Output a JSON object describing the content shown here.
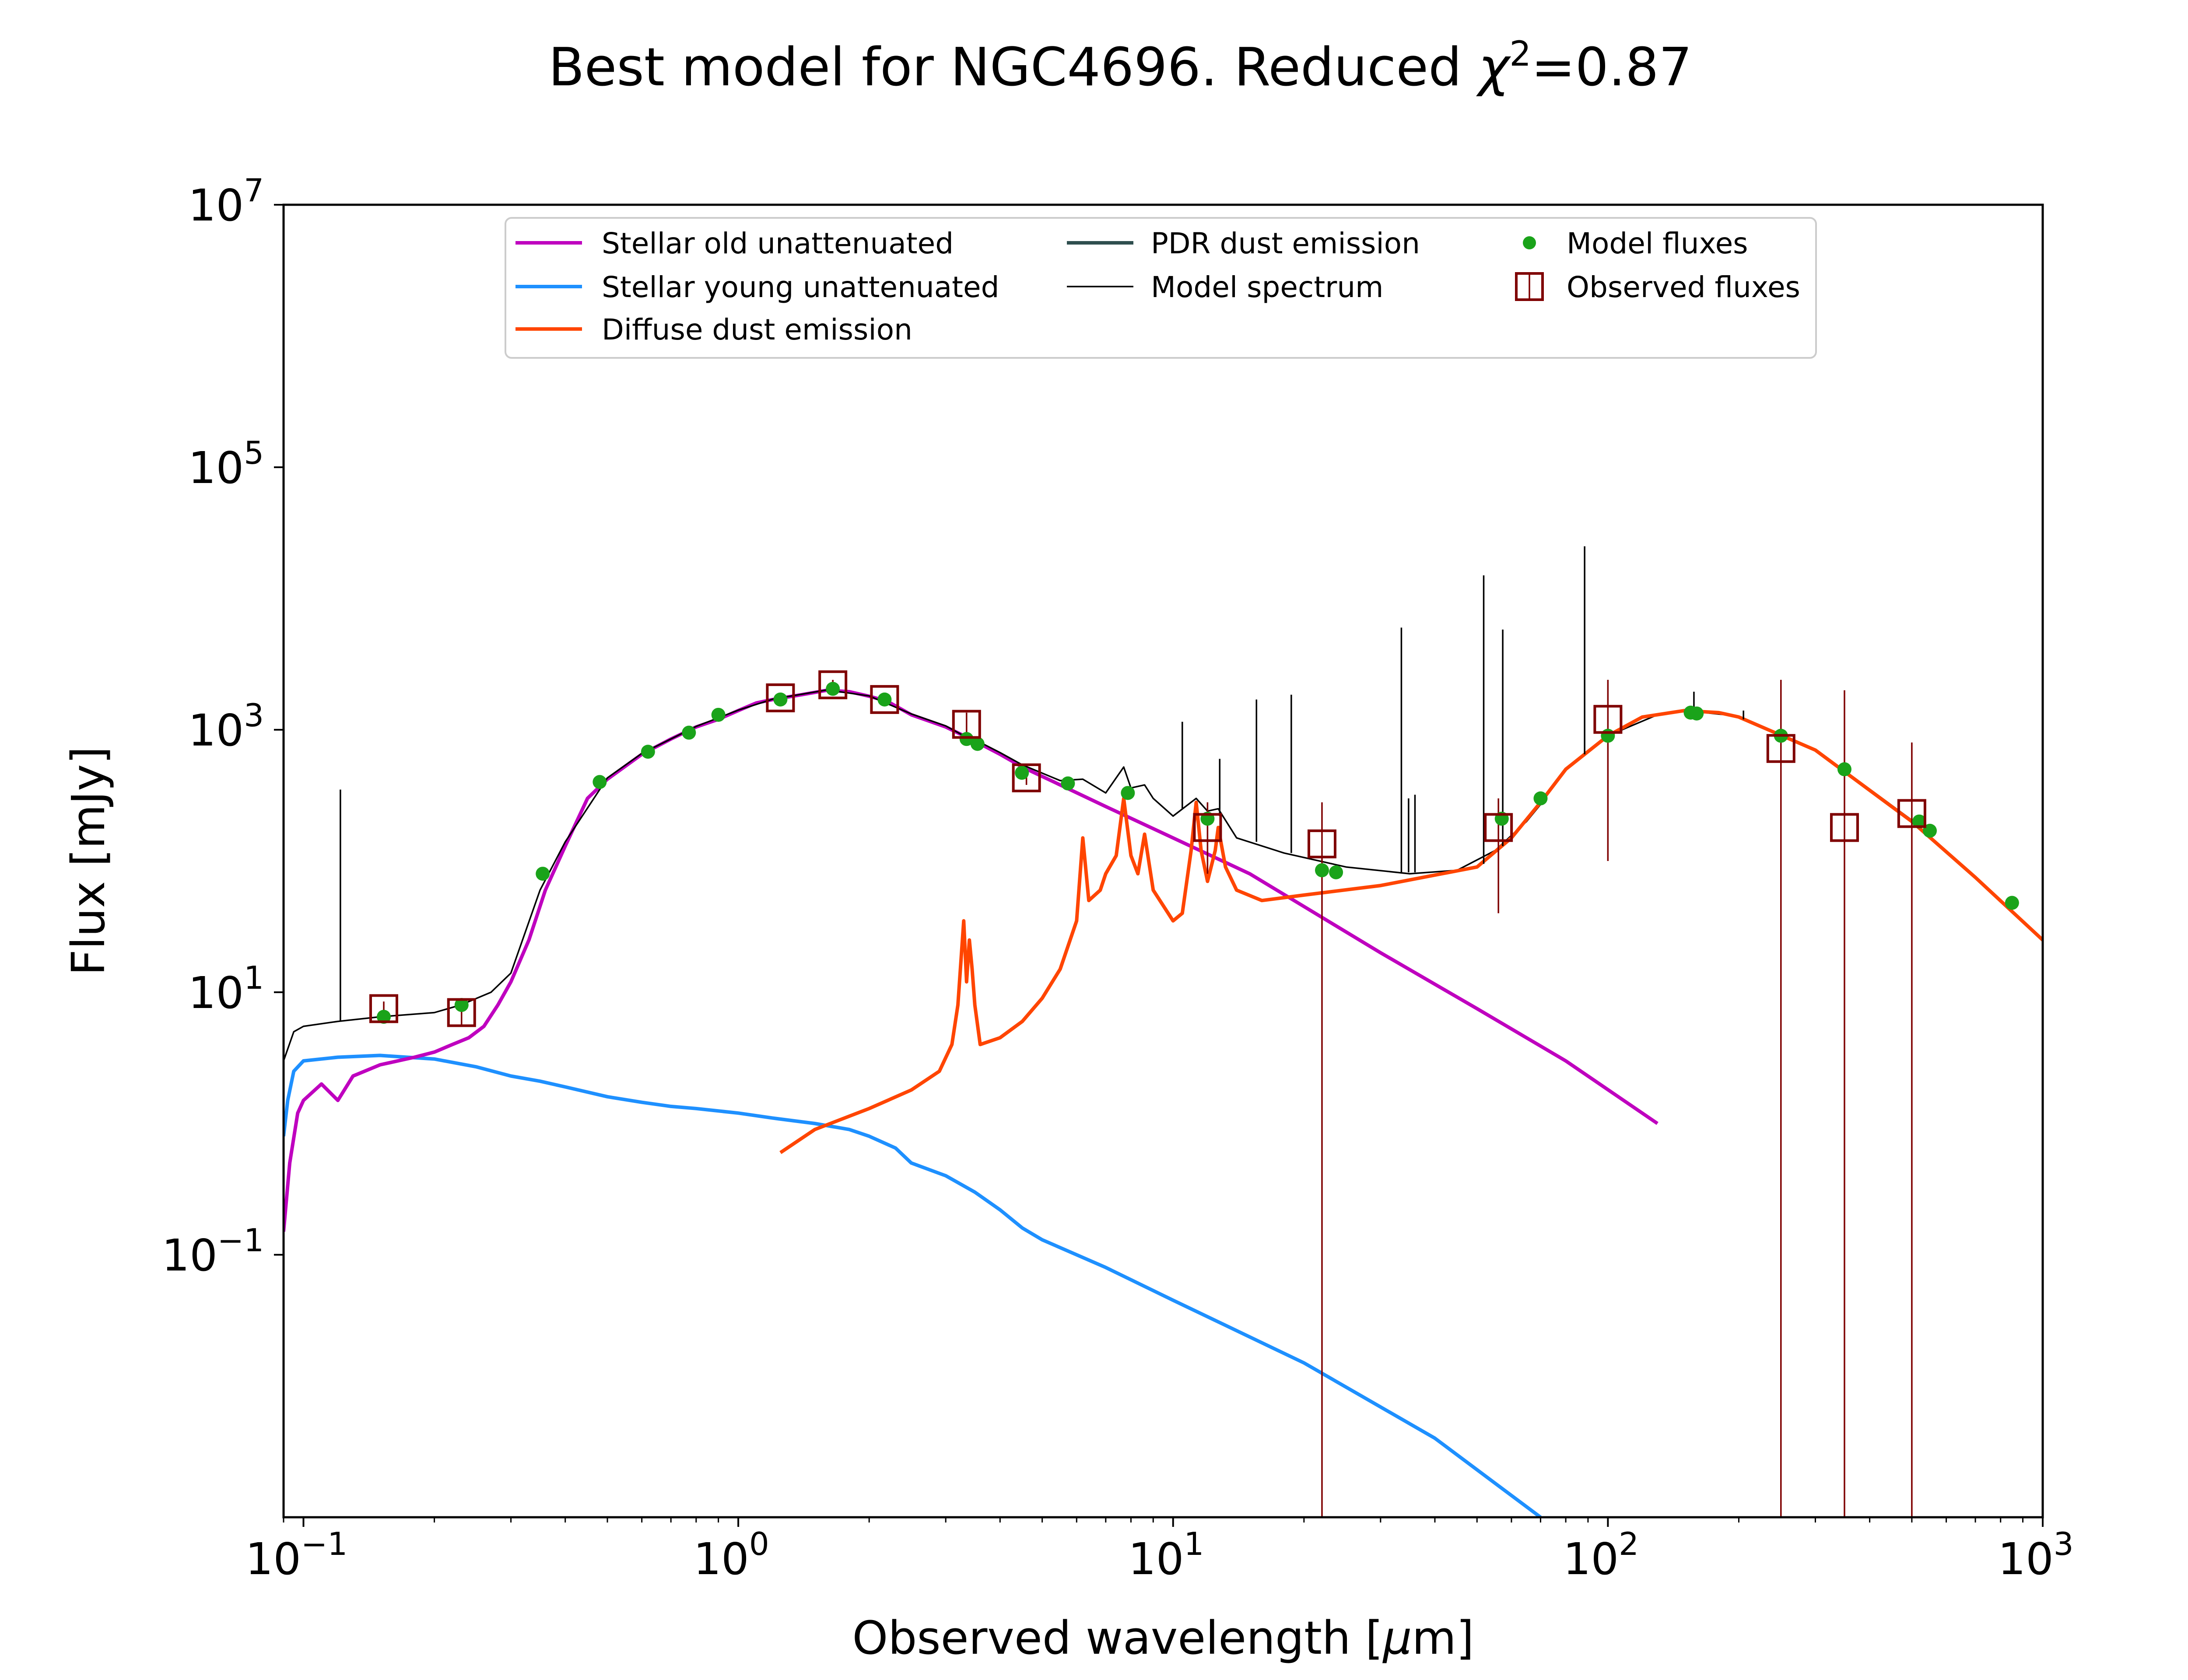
{
  "chart_data": {
    "type": "line",
    "title": {
      "prefix": "Best model for NGC4696. Reduced ",
      "chi": "χ",
      "sup": "2",
      "suffix": "=0.87"
    },
    "xlabel": {
      "prefix": "Observed wavelength [",
      "mu": "μ",
      "suffix": "m]"
    },
    "ylabel": "Flux [mJy]",
    "xscale": "log",
    "yscale": "log",
    "xlim": [
      0.09,
      1000
    ],
    "ylim": [
      0.001,
      10000000
    ],
    "x_ticks": [
      {
        "value": 0.1,
        "base": "10",
        "exp": "−1"
      },
      {
        "value": 1,
        "base": "10",
        "exp": "0"
      },
      {
        "value": 10,
        "base": "10",
        "exp": "1"
      },
      {
        "value": 100,
        "base": "10",
        "exp": "2"
      },
      {
        "value": 1000,
        "base": "10",
        "exp": "3"
      }
    ],
    "y_ticks": [
      {
        "value": 0.1,
        "base": "10",
        "exp": "−1"
      },
      {
        "value": 10,
        "base": "10",
        "exp": "1"
      },
      {
        "value": 1000,
        "base": "10",
        "exp": "3"
      },
      {
        "value": 100000,
        "base": "10",
        "exp": "5"
      },
      {
        "value": 10000000,
        "base": "10",
        "exp": "7"
      }
    ],
    "legend_position": "top-center",
    "legend": [
      {
        "key": "old",
        "label": "Stellar old unattenuated",
        "kind": "line",
        "color": "#bf00bf"
      },
      {
        "key": "young",
        "label": "Stellar young unattenuated",
        "kind": "line",
        "color": "#1e90ff"
      },
      {
        "key": "diffuse",
        "label": "Diffuse dust emission",
        "kind": "line",
        "color": "#ff4500"
      },
      {
        "key": "pdr",
        "label": "PDR dust emission",
        "kind": "line",
        "color": "#2f4f4f"
      },
      {
        "key": "model",
        "label": "Model spectrum",
        "kind": "thinline",
        "color": "#000000"
      },
      {
        "key": "modelflux",
        "label": "Model fluxes",
        "kind": "dot",
        "color": "#1aa31a"
      },
      {
        "key": "obsflux",
        "label": "Observed fluxes",
        "kind": "square",
        "color": "#7f0000"
      }
    ],
    "series": [
      {
        "name": "Stellar old unattenuated",
        "color": "#bf00bf",
        "points": [
          [
            0.09,
            0.15
          ],
          [
            0.093,
            0.5
          ],
          [
            0.097,
            1.2
          ],
          [
            0.1,
            1.5
          ],
          [
            0.11,
            2
          ],
          [
            0.12,
            1.5
          ],
          [
            0.13,
            2.3
          ],
          [
            0.15,
            2.8
          ],
          [
            0.18,
            3.2
          ],
          [
            0.2,
            3.5
          ],
          [
            0.22,
            4
          ],
          [
            0.24,
            4.5
          ],
          [
            0.26,
            5.5
          ],
          [
            0.28,
            8
          ],
          [
            0.3,
            12
          ],
          [
            0.33,
            25
          ],
          [
            0.36,
            60
          ],
          [
            0.4,
            130
          ],
          [
            0.45,
            300
          ],
          [
            0.5,
            420
          ],
          [
            0.6,
            650
          ],
          [
            0.7,
            850
          ],
          [
            0.8,
            1050
          ],
          [
            0.9,
            1200
          ],
          [
            1.0,
            1400
          ],
          [
            1.1,
            1600
          ],
          [
            1.2,
            1700
          ],
          [
            1.4,
            1850
          ],
          [
            1.6,
            2000
          ],
          [
            1.8,
            1950
          ],
          [
            2.0,
            1800
          ],
          [
            2.2,
            1650
          ],
          [
            2.5,
            1300
          ],
          [
            3.0,
            1050
          ],
          [
            3.5,
            820
          ],
          [
            4.0,
            650
          ],
          [
            4.5,
            520
          ],
          [
            5.5,
            380
          ],
          [
            7,
            260
          ],
          [
            10,
            150
          ],
          [
            15,
            80
          ],
          [
            20,
            45
          ],
          [
            30,
            20
          ],
          [
            50,
            7.5
          ],
          [
            80,
            3
          ],
          [
            130,
            1.0
          ]
        ]
      },
      {
        "name": "Stellar young unattenuated",
        "color": "#1e90ff",
        "points": [
          [
            0.09,
            0.8
          ],
          [
            0.092,
            1.5
          ],
          [
            0.095,
            2.5
          ],
          [
            0.1,
            3.0
          ],
          [
            0.12,
            3.2
          ],
          [
            0.15,
            3.3
          ],
          [
            0.2,
            3.1
          ],
          [
            0.25,
            2.7
          ],
          [
            0.3,
            2.3
          ],
          [
            0.35,
            2.1
          ],
          [
            0.4,
            1.9
          ],
          [
            0.5,
            1.6
          ],
          [
            0.6,
            1.45
          ],
          [
            0.7,
            1.35
          ],
          [
            0.8,
            1.3
          ],
          [
            1.0,
            1.2
          ],
          [
            1.2,
            1.1
          ],
          [
            1.5,
            1.0
          ],
          [
            1.8,
            0.9
          ],
          [
            2.0,
            0.8
          ],
          [
            2.3,
            0.65
          ],
          [
            2.5,
            0.5
          ],
          [
            3.0,
            0.4
          ],
          [
            3.5,
            0.3
          ],
          [
            4.0,
            0.22
          ],
          [
            4.5,
            0.16
          ],
          [
            5.0,
            0.13
          ],
          [
            7.0,
            0.08
          ],
          [
            10,
            0.045
          ],
          [
            20,
            0.015
          ],
          [
            40,
            0.004
          ],
          [
            70,
            0.001
          ]
        ]
      },
      {
        "name": "Diffuse dust emission",
        "color": "#ff4500",
        "points": [
          [
            1.25,
            0.6
          ],
          [
            1.5,
            0.9
          ],
          [
            2.0,
            1.3
          ],
          [
            2.5,
            1.8
          ],
          [
            2.9,
            2.5
          ],
          [
            3.1,
            4
          ],
          [
            3.2,
            8
          ],
          [
            3.3,
            35
          ],
          [
            3.35,
            12
          ],
          [
            3.4,
            25
          ],
          [
            3.45,
            15
          ],
          [
            3.5,
            8
          ],
          [
            3.6,
            4
          ],
          [
            4.0,
            4.5
          ],
          [
            4.5,
            6
          ],
          [
            5.0,
            9
          ],
          [
            5.5,
            15
          ],
          [
            6.0,
            35
          ],
          [
            6.2,
            150
          ],
          [
            6.4,
            50
          ],
          [
            6.8,
            60
          ],
          [
            7.0,
            80
          ],
          [
            7.4,
            110
          ],
          [
            7.7,
            300
          ],
          [
            8.0,
            110
          ],
          [
            8.3,
            80
          ],
          [
            8.6,
            160
          ],
          [
            9.0,
            60
          ],
          [
            10,
            35
          ],
          [
            10.5,
            40
          ],
          [
            11.0,
            120
          ],
          [
            11.3,
            280
          ],
          [
            11.6,
            120
          ],
          [
            12.0,
            70
          ],
          [
            12.5,
            120
          ],
          [
            12.7,
            180
          ],
          [
            13.2,
            90
          ],
          [
            14,
            60
          ],
          [
            16,
            50
          ],
          [
            20,
            55
          ],
          [
            30,
            65
          ],
          [
            50,
            90
          ],
          [
            60,
            150
          ],
          [
            70,
            280
          ],
          [
            80,
            500
          ],
          [
            100,
            900
          ],
          [
            120,
            1250
          ],
          [
            150,
            1400
          ],
          [
            180,
            1350
          ],
          [
            200,
            1250
          ],
          [
            300,
            700
          ],
          [
            500,
            200
          ],
          [
            700,
            75
          ],
          [
            1000,
            25
          ]
        ]
      },
      {
        "name": "Model spectrum",
        "color": "#000000",
        "points": [
          [
            0.09,
            3
          ],
          [
            0.095,
            5
          ],
          [
            0.1,
            5.5
          ],
          [
            0.12,
            6
          ],
          [
            0.15,
            6.5
          ],
          [
            0.2,
            7
          ],
          [
            0.23,
            8
          ],
          [
            0.27,
            10
          ],
          [
            0.3,
            14
          ],
          [
            0.35,
            60
          ],
          [
            0.4,
            140
          ],
          [
            0.5,
            430
          ],
          [
            0.6,
            660
          ],
          [
            0.8,
            1060
          ],
          [
            1.0,
            1410
          ],
          [
            1.2,
            1710
          ],
          [
            1.6,
            2010
          ],
          [
            2.0,
            1810
          ],
          [
            2.5,
            1320
          ],
          [
            3.0,
            1070
          ],
          [
            3.3,
            900
          ],
          [
            3.5,
            840
          ],
          [
            4.0,
            670
          ],
          [
            4.5,
            540
          ],
          [
            5.5,
            410
          ],
          [
            6.2,
            420
          ],
          [
            7.0,
            330
          ],
          [
            7.7,
            520
          ],
          [
            8.0,
            360
          ],
          [
            8.6,
            380
          ],
          [
            9.0,
            300
          ],
          [
            10,
            220
          ],
          [
            11.3,
            300
          ],
          [
            12,
            240
          ],
          [
            12.7,
            250
          ],
          [
            14,
            150
          ],
          [
            18,
            115
          ],
          [
            25,
            90
          ],
          [
            35,
            80
          ],
          [
            45,
            85
          ],
          [
            55,
            120
          ],
          [
            65,
            200
          ],
          [
            70,
            270
          ],
          [
            80,
            500
          ],
          [
            100,
            900
          ],
          [
            130,
            1300
          ],
          [
            150,
            1400
          ],
          [
            200,
            1270
          ],
          [
            300,
            710
          ],
          [
            500,
            205
          ],
          [
            700,
            76
          ],
          [
            1000,
            25
          ]
        ]
      }
    ],
    "emission_lines": [
      {
        "x": 0.1216,
        "base": 6,
        "peak": 350
      },
      {
        "x": 10.5,
        "base": 250,
        "peak": 1150
      },
      {
        "x": 12.8,
        "base": 220,
        "peak": 600
      },
      {
        "x": 15.55,
        "base": 140,
        "peak": 1700
      },
      {
        "x": 18.7,
        "base": 115,
        "peak": 1850
      },
      {
        "x": 33.5,
        "base": 82,
        "peak": 6000
      },
      {
        "x": 34.8,
        "base": 82,
        "peak": 300
      },
      {
        "x": 36.0,
        "base": 82,
        "peak": 320
      },
      {
        "x": 51.8,
        "base": 95,
        "peak": 15000
      },
      {
        "x": 57.3,
        "base": 130,
        "peak": 5800
      },
      {
        "x": 88.4,
        "base": 650,
        "peak": 25000
      },
      {
        "x": 157.7,
        "base": 1400,
        "peak": 1950
      },
      {
        "x": 205,
        "base": 1200,
        "peak": 1400
      }
    ],
    "model_fluxes": [
      [
        0.153,
        6.5
      ],
      [
        0.231,
        8
      ],
      [
        0.355,
        80
      ],
      [
        0.48,
        400
      ],
      [
        0.62,
        680
      ],
      [
        0.77,
        950
      ],
      [
        0.9,
        1300
      ],
      [
        1.25,
        1700
      ],
      [
        1.65,
        2050
      ],
      [
        2.17,
        1700
      ],
      [
        3.35,
        850
      ],
      [
        3.55,
        780
      ],
      [
        4.49,
        470
      ],
      [
        5.73,
        390
      ],
      [
        7.87,
        330
      ],
      [
        12.0,
        210
      ],
      [
        22.0,
        85
      ],
      [
        23.7,
        82
      ],
      [
        57.0,
        210
      ],
      [
        70.0,
        300
      ],
      [
        100,
        900
      ],
      [
        155,
        1350
      ],
      [
        160,
        1330
      ],
      [
        250,
        900
      ],
      [
        350,
        500
      ],
      [
        520,
        200
      ],
      [
        550,
        170
      ],
      [
        850,
        48
      ]
    ],
    "observed_fluxes": [
      {
        "x": 0.153,
        "y": 7.5,
        "lo": 6.5,
        "hi": 8.5
      },
      {
        "x": 0.231,
        "y": 7.0,
        "lo": 5.5,
        "hi": 8.5
      },
      {
        "x": 1.25,
        "y": 1750,
        "lo": 1600,
        "hi": 1900
      },
      {
        "x": 1.65,
        "y": 2200,
        "lo": 2000,
        "hi": 2400
      },
      {
        "x": 2.17,
        "y": 1700,
        "lo": 1550,
        "hi": 1850
      },
      {
        "x": 3.35,
        "y": 1100,
        "lo": 850,
        "hi": 1350
      },
      {
        "x": 4.6,
        "y": 430,
        "lo": 380,
        "hi": 480
      },
      {
        "x": 12.0,
        "y": 180,
        "lo": 80,
        "hi": 280
      },
      {
        "x": 22.0,
        "y": 135,
        "lo": 0.001,
        "hi": 280
      },
      {
        "x": 56.0,
        "y": 180,
        "lo": 40,
        "hi": 300
      },
      {
        "x": 100,
        "y": 1200,
        "lo": 100,
        "hi": 2400
      },
      {
        "x": 250,
        "y": 720,
        "lo": 0.001,
        "hi": 2400
      },
      {
        "x": 350,
        "y": 180,
        "lo": 0.001,
        "hi": 2000
      },
      {
        "x": 500,
        "y": 230,
        "lo": 0.001,
        "hi": 800
      }
    ]
  }
}
